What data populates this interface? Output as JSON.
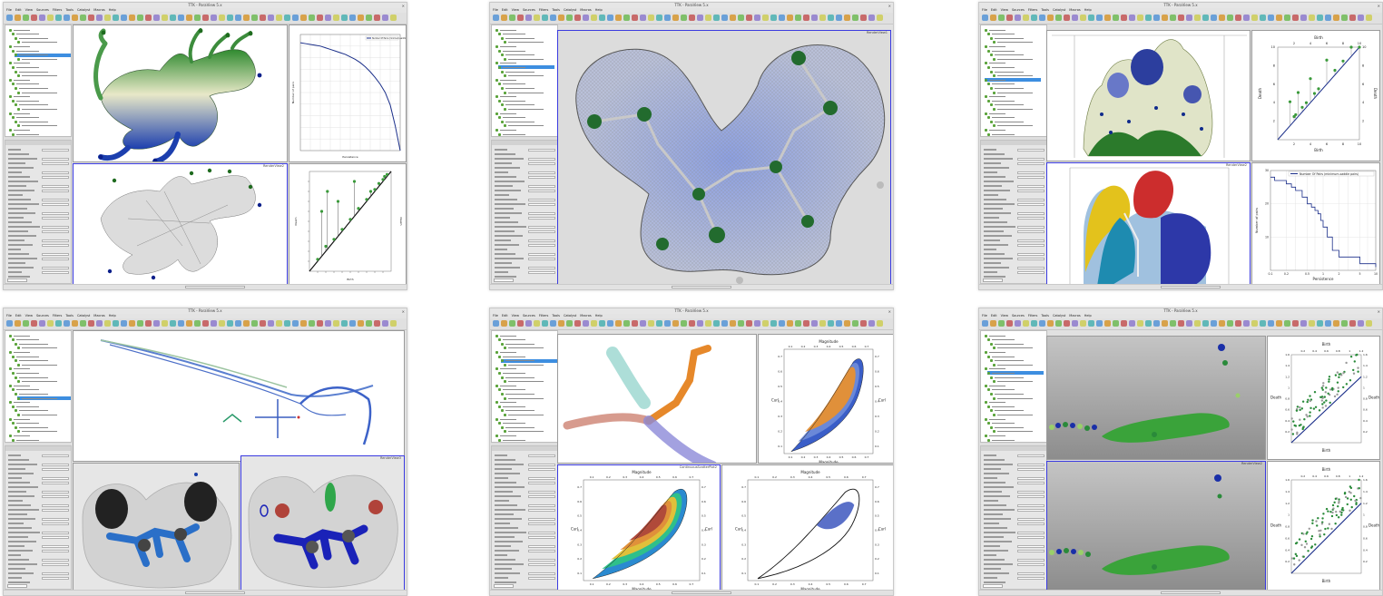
{
  "screenshots": [
    {
      "window_title": "TTK - ParaView 5.x",
      "menu": [
        "File",
        "Edit",
        "View",
        "Sources",
        "Filters",
        "Tools",
        "Catalyst",
        "Macros",
        "Help"
      ],
      "views": [
        {
          "label": "RenderView1",
          "active": false
        },
        {
          "label": "LineChartView1",
          "active": false
        },
        {
          "label": "RenderView2",
          "active": true
        },
        {
          "label": "LineChartView2",
          "active": false
        }
      ],
      "chart_data": [
        {
          "type": "line",
          "title": "",
          "legend": [
            "Number Of Pairs (minimum-saddle pairs)"
          ],
          "x": [
            0,
            0.05,
            0.1,
            0.15,
            0.2,
            0.25,
            0.3,
            0.35,
            0.4,
            0.45,
            0.5,
            0.55,
            0.6,
            0.65,
            0.7,
            0.75,
            0.8,
            0.85,
            0.9,
            0.95,
            1.0
          ],
          "y": [
            130,
            129,
            128,
            127,
            126,
            124,
            122,
            120,
            118,
            116,
            113,
            110,
            106,
            101,
            95,
            88,
            80,
            70,
            55,
            30,
            0
          ],
          "xlim": [
            0,
            1
          ],
          "ylim": [
            0,
            140
          ],
          "xlabel": "Persistence",
          "ylabel": "Number of pairs"
        },
        {
          "type": "scatter",
          "title": "",
          "xlabel": "Birth",
          "ylabel": "Death",
          "x": [
            0.1,
            0.15,
            0.2,
            0.22,
            0.3,
            0.35,
            0.4,
            0.5,
            0.55,
            0.6,
            0.7,
            0.75,
            0.8,
            0.85,
            0.9,
            0.92,
            0.95
          ],
          "y": [
            0.12,
            0.6,
            0.25,
            0.8,
            0.32,
            0.7,
            0.42,
            0.52,
            0.9,
            0.63,
            0.72,
            0.8,
            0.82,
            0.88,
            0.92,
            0.95,
            0.97
          ],
          "xlim": [
            0,
            1
          ],
          "ylim": [
            0,
            1
          ]
        }
      ]
    },
    {
      "window_title": "TTK - ParaView 5.x",
      "menu": [
        "File",
        "Edit",
        "View",
        "Sources",
        "Filters",
        "Tools",
        "Catalyst",
        "Macros",
        "Help"
      ],
      "views": [
        {
          "label": "RenderView1",
          "active": true
        }
      ]
    },
    {
      "window_title": "TTK - ParaView 5.x",
      "menu": [
        "File",
        "Edit",
        "View",
        "Sources",
        "Filters",
        "Tools",
        "Catalyst",
        "Macros",
        "Help"
      ],
      "views": [
        {
          "label": "RenderView1",
          "active": false
        },
        {
          "label": "RenderView2",
          "active": true
        }
      ],
      "chart_data": [
        {
          "type": "scatter",
          "title": "",
          "xlabel": "Birth",
          "ylabel": "Death",
          "x": [
            1.5,
            2,
            2.2,
            2.5,
            3,
            3.5,
            4,
            4.5,
            5,
            6,
            7,
            8,
            9,
            10
          ],
          "y": [
            1.6,
            2.1,
            2.3,
            2.6,
            3.1,
            3.6,
            4.1,
            4.6,
            5.1,
            6.1,
            7.1,
            8.1,
            9.1,
            10
          ],
          "xlim": [
            0,
            10
          ],
          "ylim": [
            0,
            10
          ],
          "xticks": [
            "2",
            "4",
            "6",
            "8",
            "10"
          ],
          "yticks": [
            "2",
            "4",
            "6",
            "8",
            "10"
          ]
        },
        {
          "type": "line",
          "title": "",
          "legend": [
            "Number Of Pairs (minimum-saddle pairs)"
          ],
          "x": [
            0.1,
            0.12,
            0.2,
            0.25,
            0.3,
            0.4,
            0.5,
            0.6,
            0.7,
            0.8,
            0.9,
            1.0,
            1.2,
            1.5,
            2.0,
            5.0,
            10.0
          ],
          "y": [
            28,
            27,
            26,
            25,
            24,
            22,
            20,
            19,
            18,
            17,
            15,
            13,
            10,
            6,
            4,
            2,
            1
          ],
          "xlabel": "Persistence",
          "ylabel": "Number of pairs",
          "xticks": [
            "0.1",
            "0.2",
            "0.5",
            "1",
            "2",
            "5",
            "10"
          ],
          "yticks": [
            "10",
            "20",
            "30"
          ],
          "ylim": [
            0,
            30
          ],
          "xscale": "log"
        }
      ]
    },
    {
      "window_title": "TTK - ParaView 5.x",
      "menu": [
        "File",
        "Edit",
        "View",
        "Sources",
        "Filters",
        "Tools",
        "Catalyst",
        "Macros",
        "Help"
      ],
      "views": [
        {
          "label": "RenderView1",
          "active": false
        },
        {
          "label": "RenderView2",
          "active": false
        },
        {
          "label": "RenderView3",
          "active": true
        }
      ]
    },
    {
      "window_title": "TTK - ParaView 5.x",
      "menu": [
        "File",
        "Edit",
        "View",
        "Sources",
        "Filters",
        "Tools",
        "Catalyst",
        "Macros",
        "Help"
      ],
      "views": [
        {
          "label": "RenderView1",
          "active": false
        },
        {
          "label": "ContinuousScatterPlot1",
          "active": false
        },
        {
          "label": "ContinuousScatterPlot2",
          "active": true
        },
        {
          "label": "ContinuousScatterPlot3",
          "active": false
        }
      ],
      "csp_axes": {
        "top": "Magnitude",
        "bottom": "Magnitude",
        "left": "Curl",
        "right": "Curl",
        "ticks": [
          "0.1",
          "0.2",
          "0.3",
          "0.4",
          "0.5",
          "0.6",
          "0.7"
        ]
      }
    },
    {
      "window_title": "TTK - ParaView 5.x",
      "menu": [
        "File",
        "Edit",
        "View",
        "Sources",
        "Filters",
        "Tools",
        "Catalyst",
        "Macros",
        "Help"
      ],
      "views": [
        {
          "label": "RenderView1",
          "active": false
        },
        {
          "label": "RenderView2",
          "active": true
        }
      ],
      "chart_data": [
        {
          "type": "scatter",
          "title": "",
          "xlabel": "Birth",
          "ylabel": "Death",
          "xlim": [
            0,
            1.2
          ],
          "ylim": [
            0,
            1.6
          ],
          "xticks": [
            "0.2",
            "0.4",
            "0.6",
            "0.8",
            "1",
            "1.2"
          ],
          "yticks": [
            "0.2",
            "0.4",
            "0.6",
            "0.8",
            "1",
            "1.2",
            "1.4",
            "1.6"
          ]
        }
      ]
    }
  ]
}
